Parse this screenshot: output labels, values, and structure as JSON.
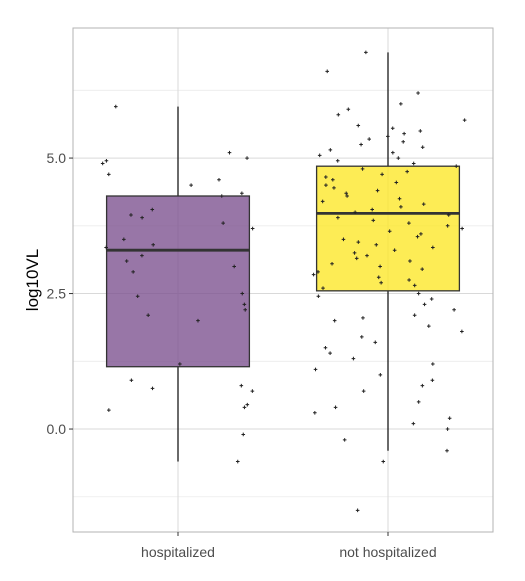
{
  "chart_data": {
    "type": "boxplot",
    "title": "",
    "xlabel": "",
    "ylabel": "log10VL",
    "ylim": [
      -1.9,
      7.4
    ],
    "yticks": [
      0.0,
      2.5,
      5.0
    ],
    "ytick_labels": [
      "0.0",
      "2.5",
      "5.0"
    ],
    "grid": true,
    "legend": "none",
    "categories": [
      "hospitalized",
      "not hospitalized"
    ],
    "boxes": [
      {
        "category": "hospitalized",
        "color": "#7b4f8e",
        "whisker_low": -0.6,
        "q1": 1.15,
        "median": 3.3,
        "q3": 4.3,
        "whisker_high": 5.95,
        "points": [
          5.95,
          5.1,
          5.0,
          4.95,
          4.9,
          4.7,
          4.6,
          4.5,
          4.35,
          4.3,
          4.05,
          3.95,
          3.9,
          3.8,
          3.7,
          3.5,
          3.4,
          3.35,
          3.2,
          3.1,
          3.0,
          2.9,
          2.5,
          2.45,
          2.3,
          2.2,
          2.1,
          2.0,
          1.2,
          0.9,
          0.8,
          0.75,
          0.7,
          0.45,
          0.4,
          0.35,
          -0.1,
          -0.6
        ]
      },
      {
        "category": "not hospitalized",
        "color": "#fde725",
        "whisker_low": -0.4,
        "q1": 2.55,
        "median": 3.98,
        "q3": 4.85,
        "whisker_high": 6.95,
        "points": [
          6.95,
          6.6,
          6.2,
          6.0,
          5.9,
          5.8,
          5.7,
          5.6,
          5.55,
          5.5,
          5.45,
          5.4,
          5.35,
          5.3,
          5.25,
          5.2,
          5.15,
          5.1,
          5.05,
          5.0,
          4.95,
          4.9,
          4.85,
          4.8,
          4.75,
          4.7,
          4.65,
          4.6,
          4.55,
          4.5,
          4.45,
          4.4,
          4.35,
          4.3,
          4.25,
          4.2,
          4.15,
          4.1,
          4.05,
          4.0,
          3.95,
          3.9,
          3.85,
          3.8,
          3.75,
          3.7,
          3.65,
          3.6,
          3.55,
          3.5,
          3.45,
          3.4,
          3.35,
          3.3,
          3.25,
          3.2,
          3.15,
          3.1,
          3.05,
          3.0,
          2.95,
          2.9,
          2.85,
          2.8,
          2.75,
          2.7,
          2.65,
          2.6,
          2.5,
          2.45,
          2.4,
          2.3,
          2.2,
          2.1,
          2.05,
          2.0,
          1.9,
          1.8,
          1.7,
          1.6,
          1.5,
          1.4,
          1.3,
          1.2,
          1.1,
          1.0,
          0.9,
          0.8,
          0.7,
          0.5,
          0.4,
          0.3,
          0.2,
          0.1,
          0.0,
          -0.2,
          -0.4,
          -0.6,
          -1.5
        ]
      }
    ]
  }
}
